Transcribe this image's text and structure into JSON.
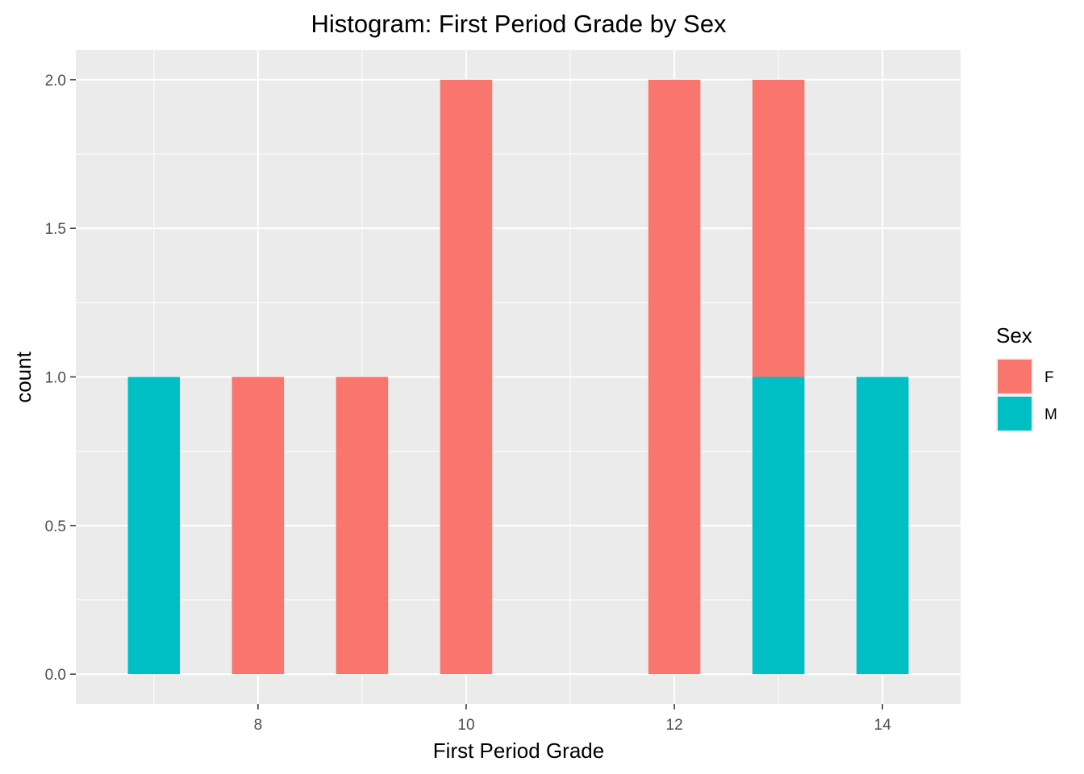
{
  "chart_data": {
    "type": "bar",
    "stacked": true,
    "title": "Histogram: First Period Grade by Sex",
    "xlabel": "First Period Grade",
    "ylabel": "count",
    "x": [
      7,
      8,
      9,
      10,
      11,
      12,
      13,
      14
    ],
    "xticks": [
      8,
      10,
      12,
      14
    ],
    "xtick_labels": [
      "8",
      "10",
      "12",
      "14"
    ],
    "yticks": [
      0,
      0.5,
      1,
      1.5,
      2
    ],
    "ytick_labels": [
      "0.0",
      "0.5",
      "1.0",
      "1.5",
      "2.0"
    ],
    "xlim": [
      6.25,
      14.75
    ],
    "ylim": [
      -0.1,
      2.1
    ],
    "bar_width": 0.5,
    "grid": true,
    "legend": {
      "title": "Sex",
      "position": "right"
    },
    "series": [
      {
        "name": "F",
        "color": "#F8766D",
        "values": [
          0,
          1,
          1,
          2,
          0,
          2,
          1,
          0
        ]
      },
      {
        "name": "M",
        "color": "#00BFC4",
        "values": [
          1,
          0,
          0,
          0,
          0,
          0,
          1,
          1
        ]
      }
    ],
    "panel_background": "#EBEBEB",
    "grid_color": "#FFFFFF",
    "tick_color": "#333333"
  }
}
